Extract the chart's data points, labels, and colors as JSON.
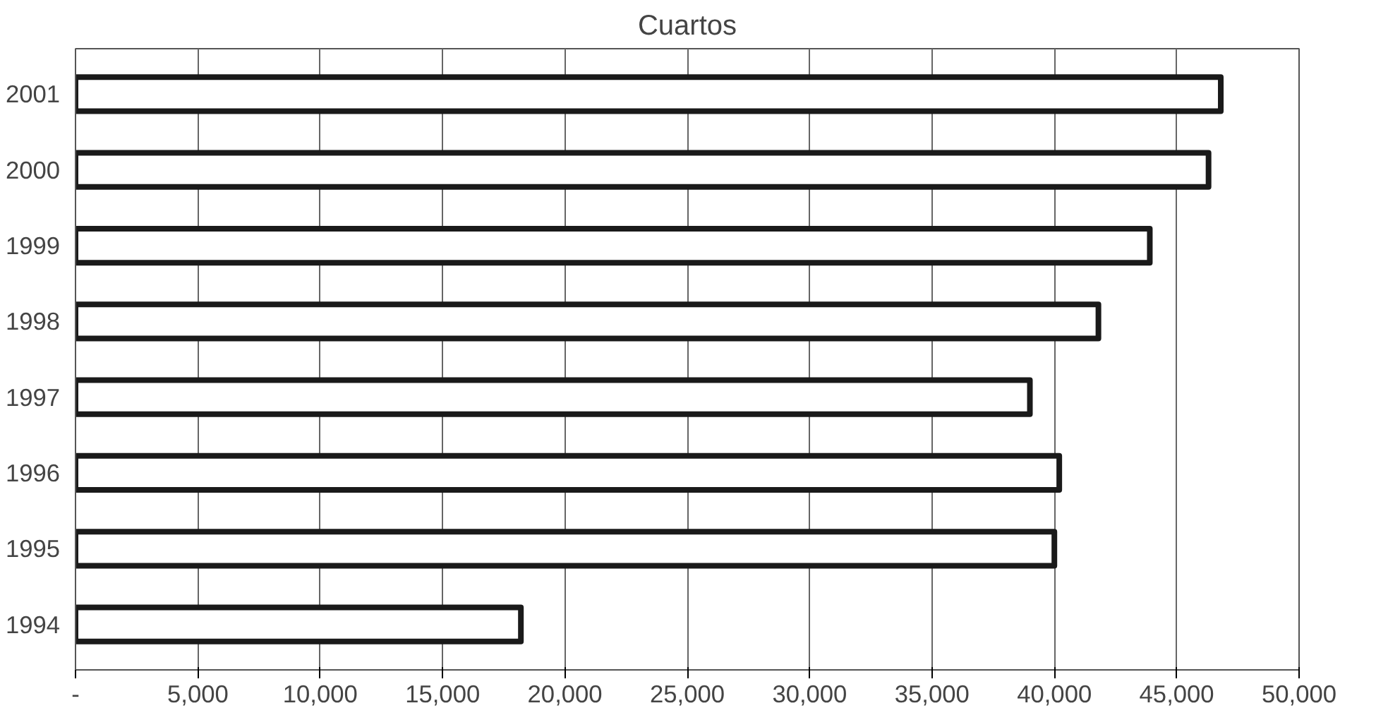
{
  "chart_data": {
    "type": "bar",
    "orientation": "horizontal",
    "title": "Cuartos",
    "categories": [
      "2001",
      "2000",
      "1999",
      "1998",
      "1997",
      "1996",
      "1995",
      "1994"
    ],
    "values": [
      46800,
      46300,
      43900,
      41800,
      39000,
      40200,
      40000,
      18200
    ],
    "color": "#1a1a1a",
    "xlim": [
      0,
      50000
    ],
    "xticks": [
      {
        "value": 0,
        "label": "-"
      },
      {
        "value": 5000,
        "label": "5,000"
      },
      {
        "value": 10000,
        "label": "10,000"
      },
      {
        "value": 15000,
        "label": "15,000"
      },
      {
        "value": 20000,
        "label": "20,000"
      },
      {
        "value": 25000,
        "label": "25,000"
      },
      {
        "value": 30000,
        "label": "30,000"
      },
      {
        "value": 35000,
        "label": "35,000"
      },
      {
        "value": 40000,
        "label": "40,000"
      },
      {
        "value": 45000,
        "label": "45,000"
      },
      {
        "value": 50000,
        "label": "50,000"
      }
    ],
    "grid": "x"
  }
}
